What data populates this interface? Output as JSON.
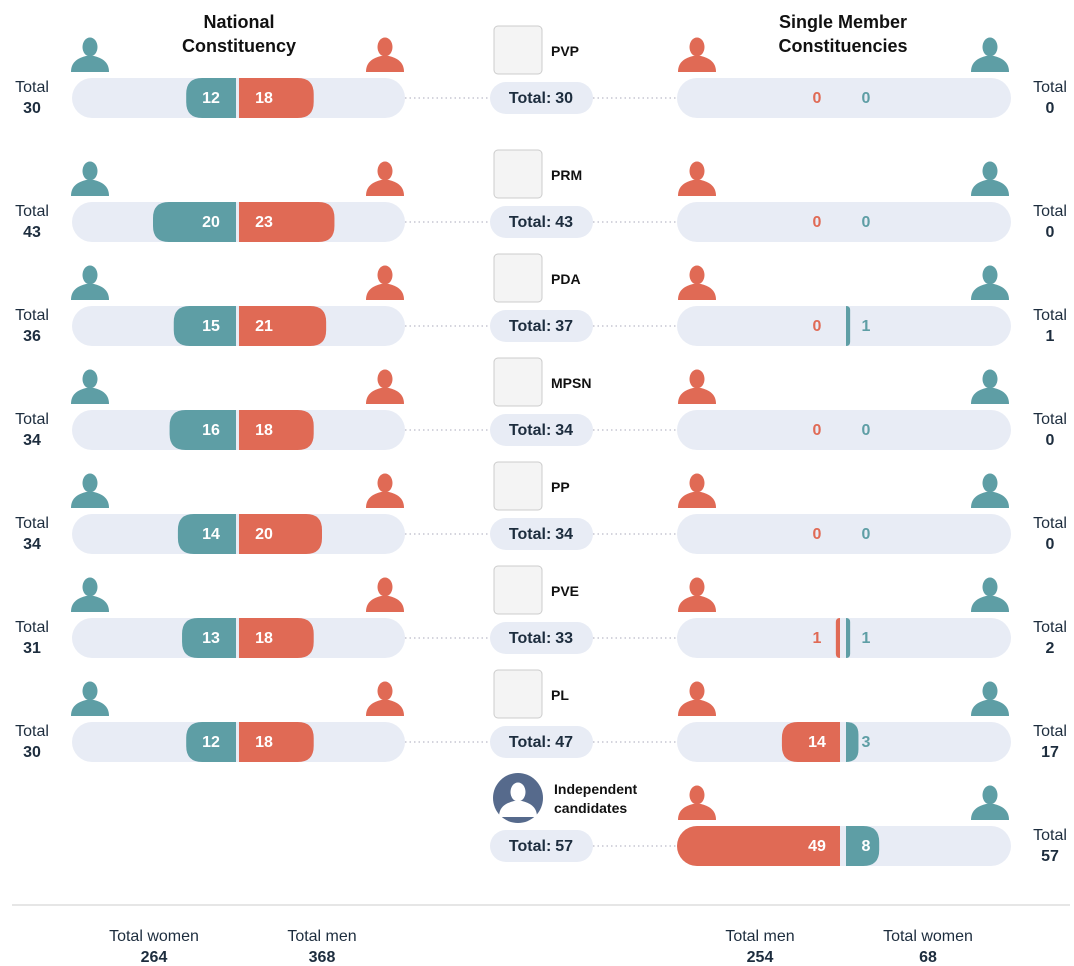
{
  "chart_data": {
    "type": "butterfly",
    "left_title": "National Constituency",
    "right_title": "Single Member Constituencies",
    "total_label": "Total",
    "party_total_label": "Total:",
    "women_color": "#5e9ea5",
    "men_color": "#e06a55",
    "parties": [
      {
        "name": "PVP",
        "national": {
          "women": 12,
          "men": 18,
          "total": 30
        },
        "smc": {
          "men": 0,
          "women": 0,
          "total": 0
        },
        "total": 30
      },
      {
        "name": "PRM",
        "national": {
          "women": 20,
          "men": 23,
          "total": 43
        },
        "smc": {
          "men": 0,
          "women": 0,
          "total": 0
        },
        "total": 43
      },
      {
        "name": "PDA",
        "national": {
          "women": 15,
          "men": 21,
          "total": 36
        },
        "smc": {
          "men": 0,
          "women": 1,
          "total": 1
        },
        "total": 37
      },
      {
        "name": "MPSN",
        "national": {
          "women": 16,
          "men": 18,
          "total": 34
        },
        "smc": {
          "men": 0,
          "women": 0,
          "total": 0
        },
        "total": 34
      },
      {
        "name": "PP",
        "national": {
          "women": 14,
          "men": 20,
          "total": 34
        },
        "smc": {
          "men": 0,
          "women": 0,
          "total": 0
        },
        "total": 34
      },
      {
        "name": "PVE",
        "national": {
          "women": 13,
          "men": 18,
          "total": 31
        },
        "smc": {
          "men": 1,
          "women": 1,
          "total": 2
        },
        "total": 33
      },
      {
        "name": "PL",
        "national": {
          "women": 12,
          "men": 18,
          "total": 30
        },
        "smc": {
          "men": 14,
          "women": 3,
          "total": 17
        },
        "total": 47
      },
      {
        "name": "Independent candidates",
        "national": null,
        "smc": {
          "men": 49,
          "women": 8,
          "total": 57
        },
        "total": 57
      }
    ],
    "footer": [
      {
        "label": "Total women",
        "value": 264
      },
      {
        "label": "Total men",
        "value": 368
      },
      {
        "label": "Total men",
        "value": 254
      },
      {
        "label": "Total women",
        "value": 68
      }
    ]
  }
}
